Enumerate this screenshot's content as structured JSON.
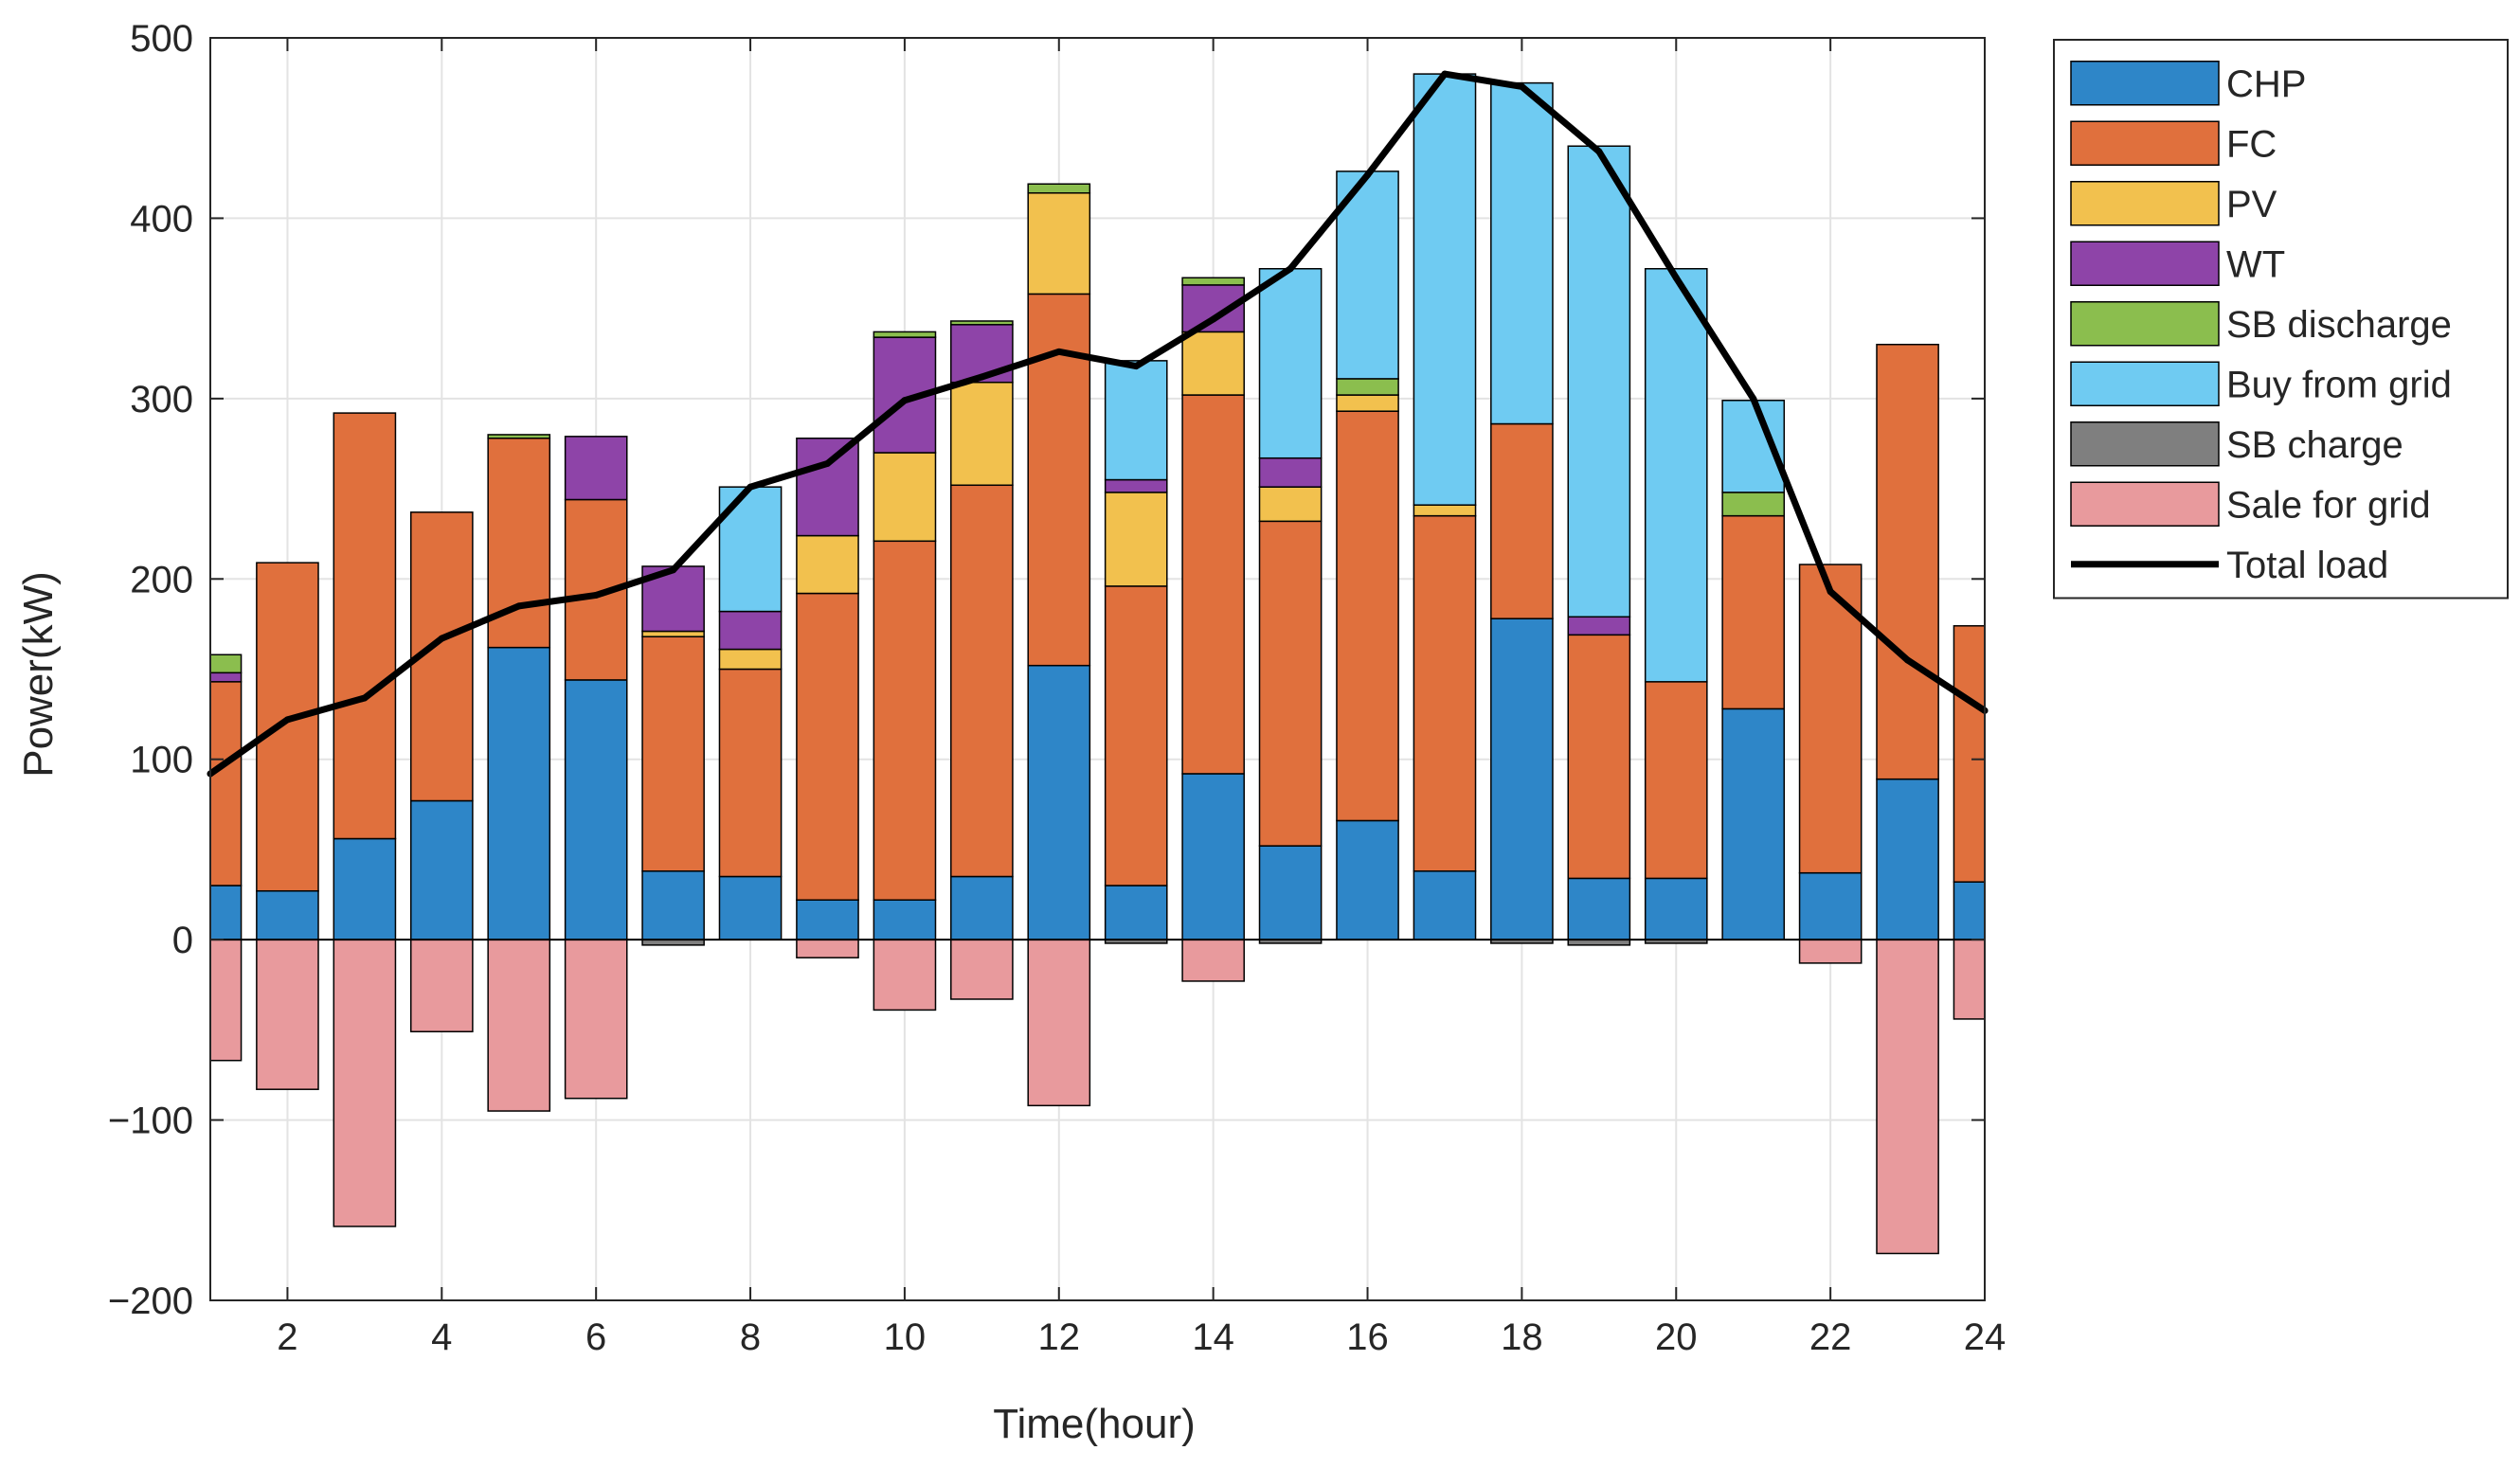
{
  "chart_data": {
    "type": "bar",
    "stacked": true,
    "title": "",
    "xlabel": "Time(hour)",
    "ylabel": "Power(kW)",
    "xlim": [
      1,
      24
    ],
    "ylim": [
      -200,
      500
    ],
    "x_ticks": [
      2,
      4,
      6,
      8,
      10,
      12,
      14,
      16,
      18,
      20,
      22,
      24
    ],
    "y_ticks": [
      -200,
      -100,
      0,
      100,
      200,
      300,
      400,
      500
    ],
    "grid": true,
    "legend_position": "outside-right-top",
    "hours": [
      1,
      2,
      3,
      4,
      5,
      6,
      7,
      8,
      9,
      10,
      11,
      12,
      13,
      14,
      15,
      16,
      17,
      18,
      19,
      20,
      21,
      22,
      23,
      24
    ],
    "series": [
      {
        "name": "CHP",
        "color": "#2E86C8",
        "values": [
          30,
          27,
          56,
          77,
          162,
          144,
          38,
          35,
          22,
          22,
          35,
          152,
          30,
          92,
          52,
          66,
          38,
          178,
          34,
          34,
          128,
          37,
          89,
          32
        ]
      },
      {
        "name": "FC",
        "color": "#E0703D",
        "values": [
          113,
          182,
          236,
          160,
          116,
          100,
          130,
          115,
          170,
          199,
          217,
          206,
          166,
          210,
          180,
          227,
          197,
          108,
          135,
          109,
          107,
          171,
          241,
          142
        ]
      },
      {
        "name": "PV",
        "color": "#F2C14E",
        "values": [
          0,
          0,
          0,
          0,
          0,
          0,
          3,
          11,
          32,
          49,
          57,
          56,
          52,
          35,
          19,
          9,
          6,
          0,
          0,
          0,
          0,
          0,
          0,
          0
        ]
      },
      {
        "name": "WT",
        "color": "#8E44A8",
        "values": [
          5,
          0,
          0,
          0,
          0,
          35,
          36,
          21,
          54,
          64,
          32,
          0,
          7,
          26,
          16,
          0,
          0,
          0,
          10,
          0,
          0,
          0,
          0,
          0
        ]
      },
      {
        "name": "SB discharge",
        "color": "#8BBE4E",
        "values": [
          10,
          0,
          0,
          0,
          2,
          0,
          0,
          0,
          0,
          3,
          2,
          5,
          0,
          4,
          0,
          9,
          0,
          0,
          0,
          0,
          13,
          0,
          0,
          0
        ]
      },
      {
        "name": "Buy from grid",
        "color": "#6FCBF2",
        "values": [
          0,
          0,
          0,
          0,
          0,
          0,
          0,
          69,
          0,
          0,
          0,
          0,
          66,
          0,
          105,
          115,
          239,
          189,
          261,
          229,
          51,
          0,
          0,
          0
        ]
      },
      {
        "name": "SB charge",
        "color": "#7F7F7F",
        "values": [
          0,
          0,
          0,
          0,
          0,
          0,
          -3,
          0,
          0,
          0,
          0,
          0,
          -2,
          0,
          -2,
          0,
          0,
          -2,
          -3,
          -2,
          0,
          0,
          0,
          0
        ]
      },
      {
        "name": "Sale for grid",
        "color": "#E89A9D",
        "values": [
          -67,
          -83,
          -159,
          -51,
          -95,
          -88,
          0,
          0,
          -10,
          -39,
          -33,
          -92,
          0,
          -23,
          0,
          0,
          0,
          0,
          0,
          0,
          0,
          -13,
          -174,
          -44
        ]
      }
    ],
    "line_series": {
      "name": "Total load",
      "color": "#000000",
      "values": [
        92,
        122,
        134,
        167,
        185,
        191,
        205,
        251,
        264,
        299,
        312,
        326,
        318,
        344,
        372,
        424,
        480,
        473,
        437,
        367,
        300,
        193,
        155,
        127
      ]
    }
  }
}
